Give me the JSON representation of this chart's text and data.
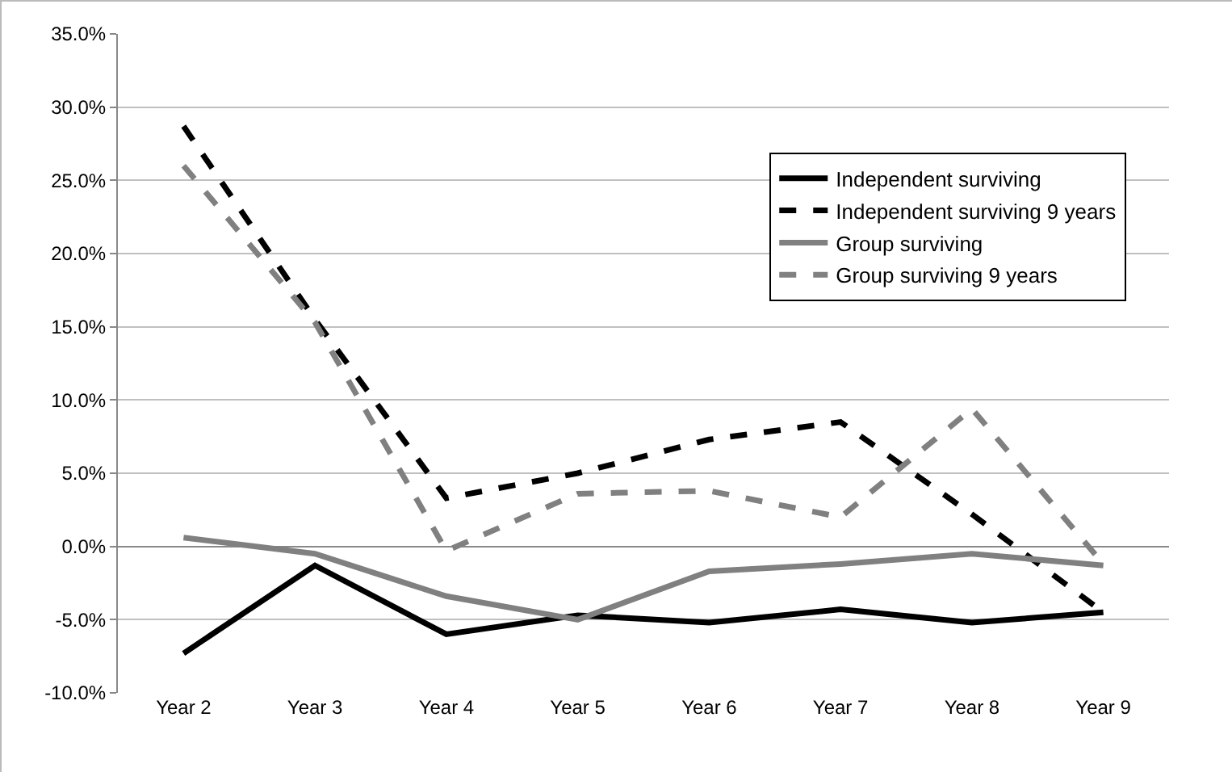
{
  "chart_data": {
    "type": "line",
    "categories": [
      "Year 2",
      "Year 3",
      "Year 4",
      "Year 5",
      "Year 6",
      "Year 7",
      "Year 8",
      "Year 9"
    ],
    "series": [
      {
        "name": "Independent surviving",
        "color": "#000000",
        "line_style": "solid",
        "values": [
          -7.3,
          -1.3,
          -6.0,
          -4.7,
          -5.2,
          -4.3,
          -5.2,
          -4.5
        ]
      },
      {
        "name": "Independent surviving 9 years",
        "color": "#000000",
        "line_style": "dashed",
        "values": [
          28.7,
          15.5,
          3.3,
          5.0,
          7.3,
          8.5,
          2.2,
          -4.5
        ]
      },
      {
        "name": "Group surviving",
        "color": "#808080",
        "line_style": "solid",
        "values": [
          0.6,
          -0.5,
          -3.4,
          -5.0,
          -1.7,
          -1.2,
          -0.5,
          -1.3
        ]
      },
      {
        "name": "Group surviving 9 years",
        "color": "#808080",
        "line_style": "dashed",
        "values": [
          26.0,
          15.3,
          -0.3,
          3.6,
          3.8,
          2.0,
          9.4,
          -1.2
        ]
      }
    ],
    "ylim": [
      -10,
      35
    ],
    "yticks": [
      {
        "value": -10,
        "label": "-10.0%"
      },
      {
        "value": -5,
        "label": "-5.0%"
      },
      {
        "value": 0,
        "label": "0.0%"
      },
      {
        "value": 5,
        "label": "5.0%"
      },
      {
        "value": 10,
        "label": "10.0%"
      },
      {
        "value": 15,
        "label": "15.0%"
      },
      {
        "value": 20,
        "label": "20.0%"
      },
      {
        "value": 25,
        "label": "25.0%"
      },
      {
        "value": 30,
        "label": "30.0%"
      },
      {
        "value": 35,
        "label": "35.0%"
      }
    ],
    "grid": "y",
    "legend": "top right",
    "marker": "none"
  }
}
